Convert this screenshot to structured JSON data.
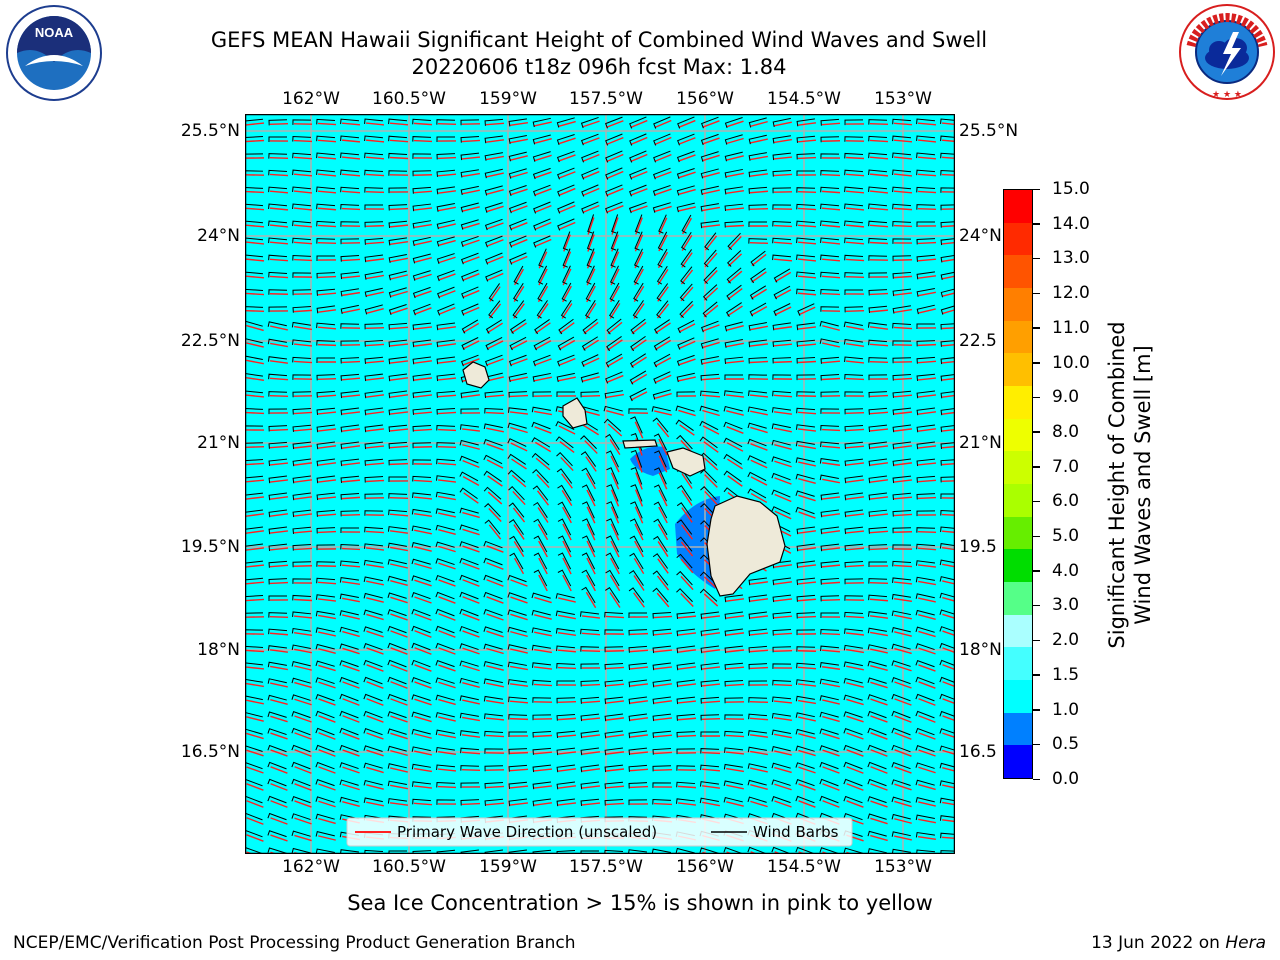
{
  "header": {
    "title_line1": "GEFS MEAN Hawaii Significant Height of Combined Wind Waves and Swell",
    "title_line2": "20220606 t18z 096h fcst   Max: 1.84"
  },
  "logos": {
    "noaa": {
      "text": "NOAA",
      "ring_text": "NATIONAL OCEANIC AND ATMOSPHERIC ADMINISTRATION · U.S. DEPARTMENT OF COMMERCE"
    },
    "nws": {
      "ring_text": "NATIONAL WEATHER SERVICE"
    }
  },
  "map": {
    "lon_ticks": [
      "162°W",
      "160.5°W",
      "159°W",
      "157.5°W",
      "156°W",
      "154.5°W",
      "153°W"
    ],
    "lat_ticks_left": [
      "25.5°N",
      "24°N",
      "22.5°N",
      "21°N",
      "19.5°N",
      "18°N",
      "16.5°N"
    ],
    "lat_ticks_right": [
      "25.5°N",
      "24°N",
      "22.5",
      "21°N",
      "19.5",
      "18°N",
      "16.5"
    ],
    "ocean_color": "#00ffff",
    "land_color": "#eeead9",
    "vector_color": "#ff2020",
    "barb_color": "#000000",
    "legend": {
      "primary_wave": "Primary Wave Direction (unscaled)",
      "wind_barbs": "Wind Barbs"
    }
  },
  "colorbar": {
    "label_line1": "Significant Height of Combined",
    "label_line2": "Wind Waves and Swell [m]",
    "ticks": [
      "15.0",
      "14.0",
      "13.0",
      "12.0",
      "11.0",
      "10.0",
      "9.0",
      "8.0",
      "7.0",
      "6.0",
      "5.0",
      "4.0",
      "3.0",
      "2.0",
      "1.5",
      "1.0",
      "0.5",
      "0.0"
    ],
    "colors_top_to_bottom": [
      "#ff0000",
      "#ff2a00",
      "#ff5400",
      "#ff7f00",
      "#ff9f00",
      "#ffbf00",
      "#ffee00",
      "#eeff00",
      "#ccff00",
      "#aaff00",
      "#66ee00",
      "#00dd00",
      "#55ff88",
      "#aaffff",
      "#44ffff",
      "#00ffff",
      "#0080ff",
      "#0000ff"
    ]
  },
  "notes": {
    "sea_ice": "Sea Ice Concentration > 15% is shown in pink to yellow"
  },
  "footer": {
    "left": "NCEP/EMC/Verification Post Processing Product Generation Branch",
    "right_prefix": "13 Jun 2022 on ",
    "right_host": "Hera"
  }
}
